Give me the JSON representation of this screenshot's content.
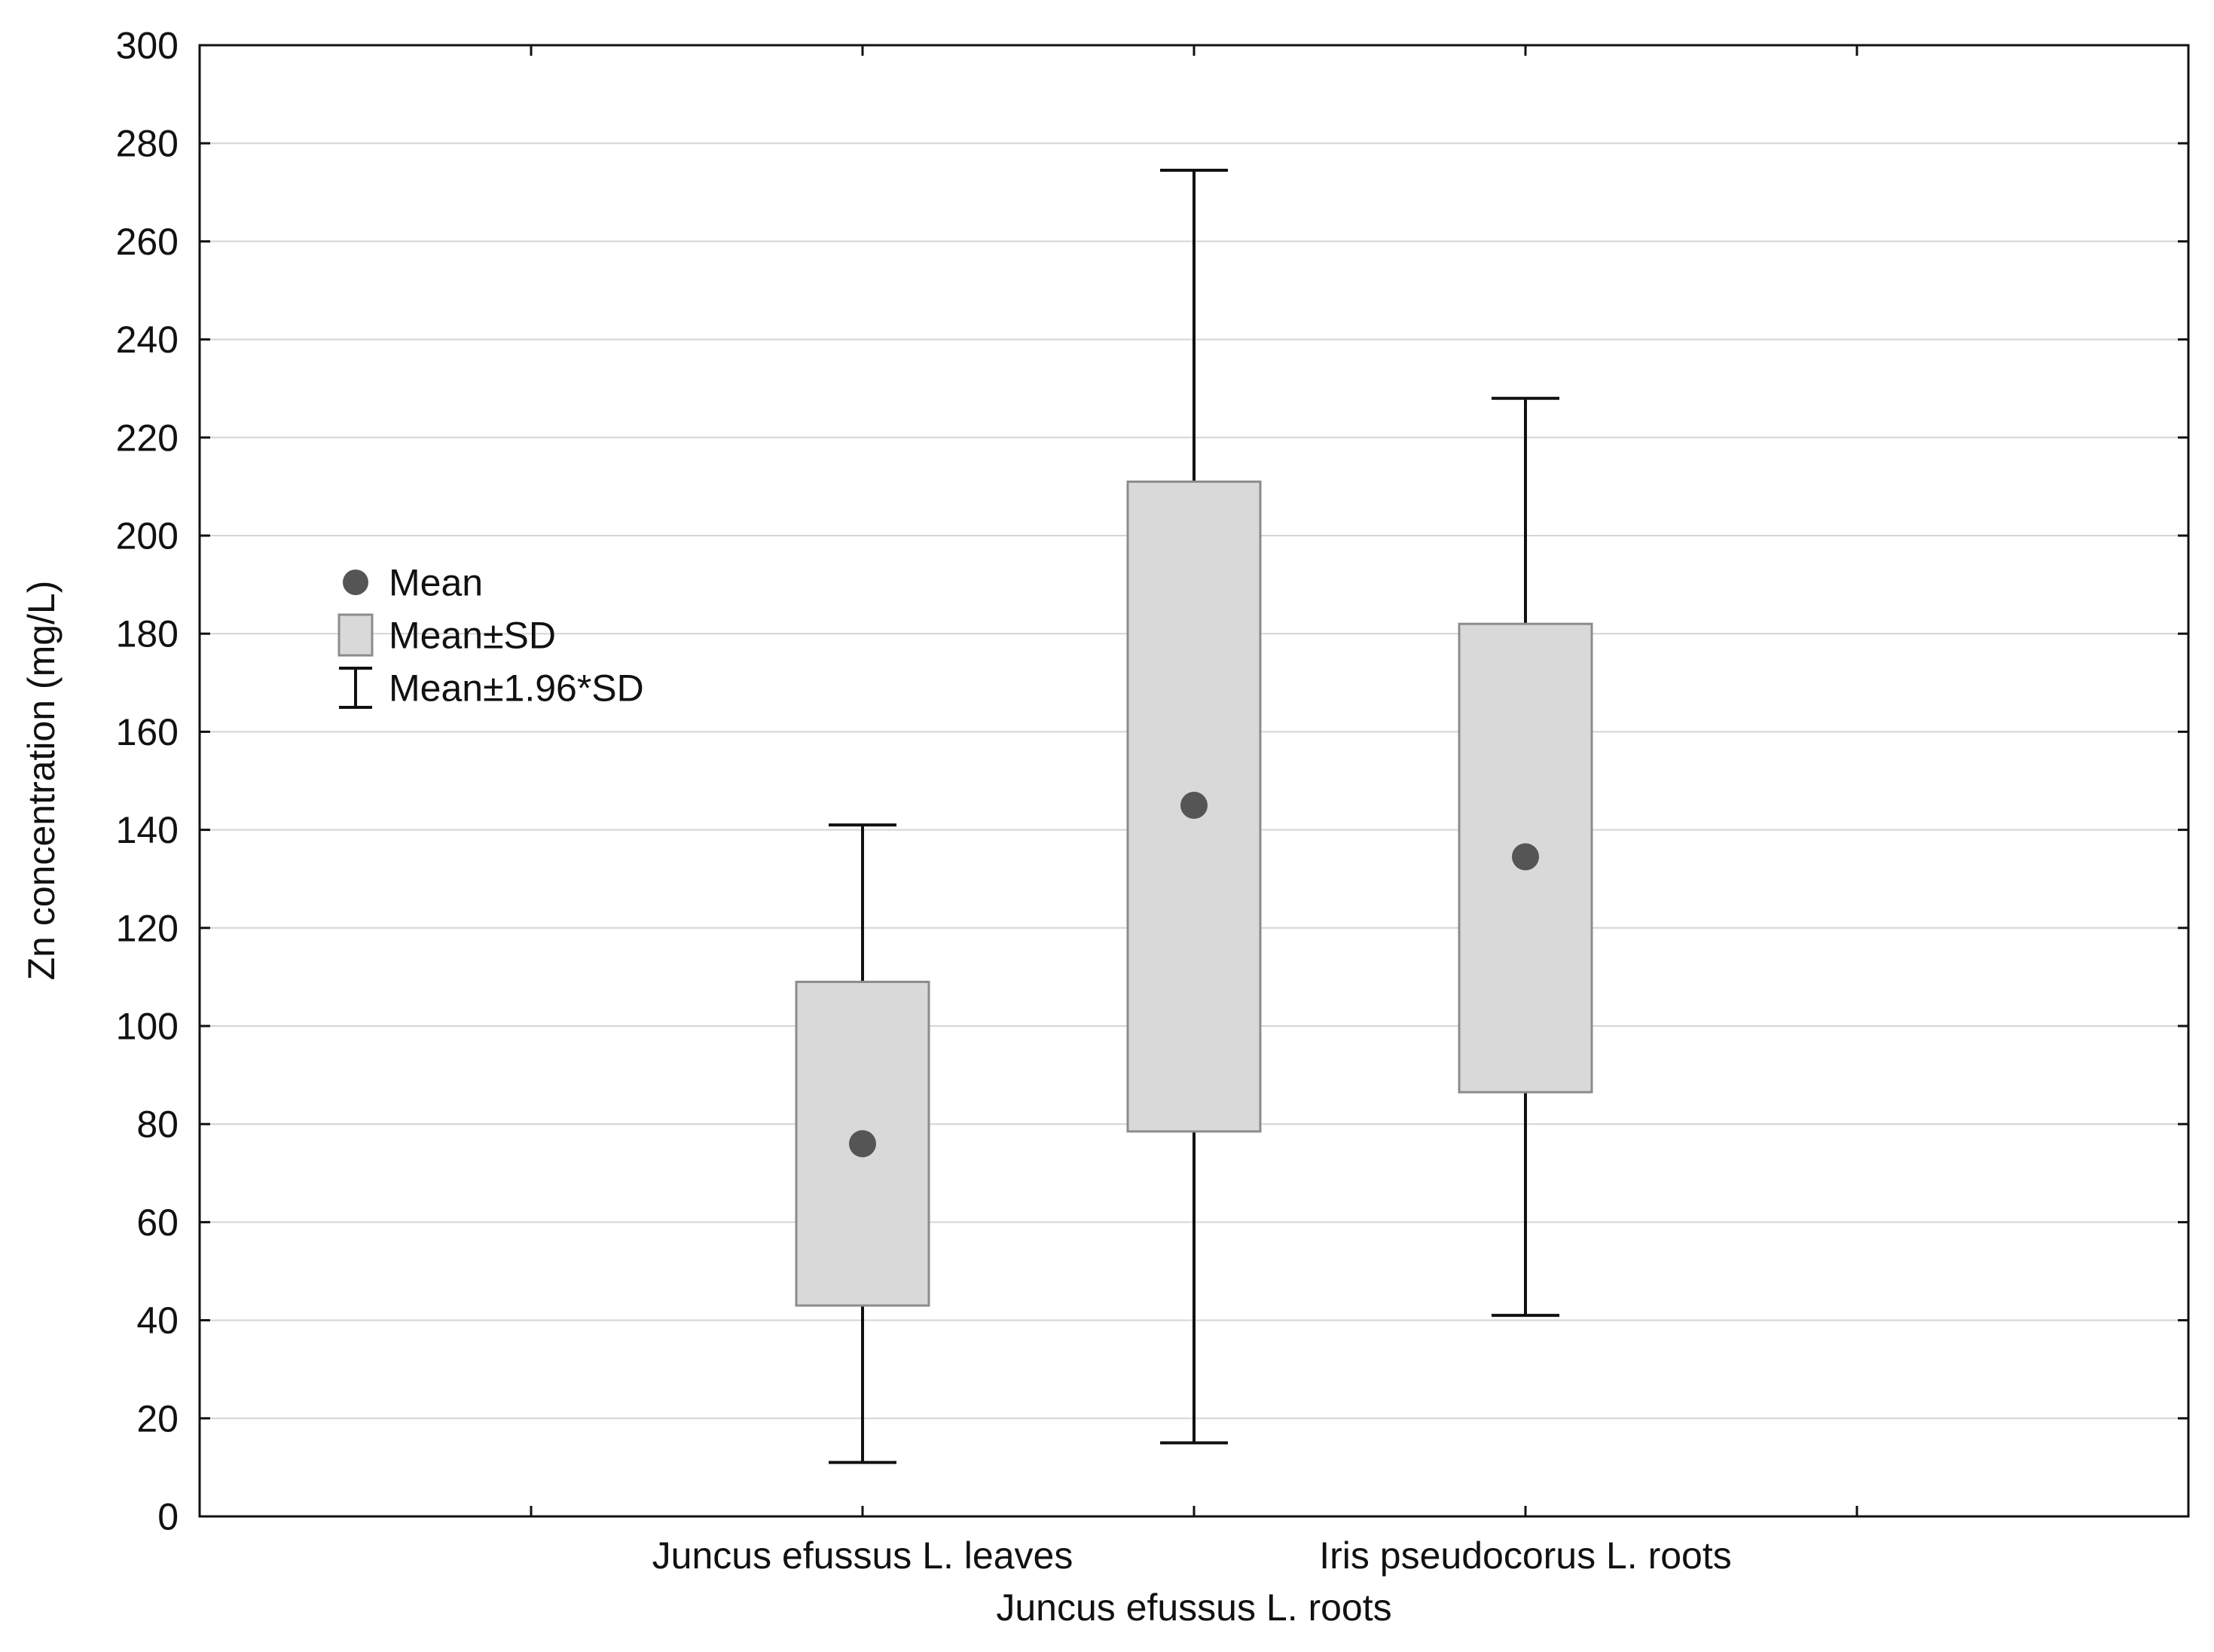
{
  "chart_data": {
    "type": "box",
    "ylabel": "Zn concentration (mg/L)",
    "ylim": [
      0,
      300
    ],
    "yticks": [
      "0",
      "20",
      "40",
      "60",
      "80",
      "100",
      "120",
      "140",
      "160",
      "180",
      "200",
      "220",
      "240",
      "260",
      "280",
      "300"
    ],
    "grid": true,
    "legend_position": "left",
    "legend": {
      "mean": "Mean",
      "sd": "Mean±SD",
      "ci": "Mean±1.96*SD"
    },
    "x_slots": 6,
    "groups": [
      {
        "name": "Juncus efussus L. leaves",
        "slot": 2,
        "label_row": 1,
        "mean": 76,
        "sd_low": 43,
        "sd_high": 109,
        "ci_low": 11,
        "ci_high": 141
      },
      {
        "name": "Juncus efussus L. roots",
        "slot": 3,
        "label_row": 2,
        "mean": 145,
        "sd_low": 78.5,
        "sd_high": 211,
        "ci_low": 15,
        "ci_high": 274.5
      },
      {
        "name": "Iris pseudocorus L. roots",
        "slot": 4,
        "label_row": 1,
        "mean": 134.5,
        "sd_low": 86.5,
        "sd_high": 182,
        "ci_low": 41,
        "ci_high": 228
      }
    ],
    "colors": {
      "box_fill": "#d9d9d9",
      "box_stroke": "#8c8c8c",
      "mean_marker": "#555555",
      "whisker": "#111111",
      "grid": "#d4d4d4",
      "axis": "#111111"
    }
  }
}
